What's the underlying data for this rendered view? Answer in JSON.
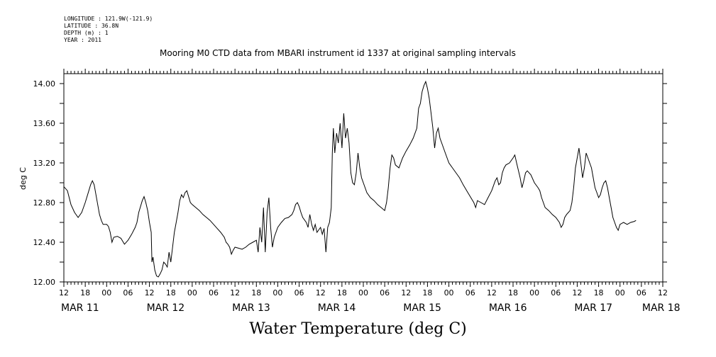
{
  "meta": {
    "longitude": "LONGITUDE : 121.9W(-121.9)",
    "latitude": "LATITUDE : 36.8N",
    "depth": "DEPTH (m) : 1",
    "year": "YEAR : 2011"
  },
  "title": "Mooring M0 CTD data from MBARI instrument id 1337 at original sampling intervals",
  "footer": "Water Temperature (deg C)",
  "chart_data": {
    "type": "line",
    "ylabel": "deg C",
    "ylim": [
      12.0,
      14.1
    ],
    "yticks": [
      "12.00",
      "12.40",
      "12.80",
      "13.20",
      "13.60",
      "14.00"
    ],
    "xlim_hours": [
      0,
      168
    ],
    "hour_tick_labels": [
      "12",
      "18",
      "00",
      "06",
      "12",
      "18",
      "00",
      "06",
      "12",
      "18",
      "00",
      "06",
      "12",
      "18",
      "00",
      "06",
      "12",
      "18",
      "00",
      "06",
      "12",
      "18",
      "00",
      "06",
      "12",
      "18",
      "00",
      "06",
      "12"
    ],
    "day_labels": [
      {
        "label": "MAR 11",
        "hour": 0
      },
      {
        "label": "MAR 12",
        "hour": 24
      },
      {
        "label": "MAR 13",
        "hour": 48
      },
      {
        "label": "MAR 14",
        "hour": 72
      },
      {
        "label": "MAR 15",
        "hour": 96
      },
      {
        "label": "MAR 16",
        "hour": 120
      },
      {
        "label": "MAR 17",
        "hour": 144
      },
      {
        "label": "MAR 18",
        "hour": 163
      }
    ],
    "series": [
      {
        "points": [
          [
            0,
            12.96
          ],
          [
            1,
            12.92
          ],
          [
            2,
            12.78
          ],
          [
            3,
            12.7
          ],
          [
            4,
            12.65
          ],
          [
            5,
            12.7
          ],
          [
            6,
            12.8
          ],
          [
            7,
            12.92
          ],
          [
            7.5,
            12.98
          ],
          [
            8,
            13.02
          ],
          [
            8.5,
            12.98
          ],
          [
            9,
            12.88
          ],
          [
            9.5,
            12.78
          ],
          [
            10,
            12.68
          ],
          [
            10.5,
            12.62
          ],
          [
            11,
            12.58
          ],
          [
            12,
            12.58
          ],
          [
            12.5,
            12.56
          ],
          [
            13,
            12.5
          ],
          [
            13.5,
            12.4
          ],
          [
            14,
            12.45
          ],
          [
            15,
            12.46
          ],
          [
            16,
            12.44
          ],
          [
            17,
            12.38
          ],
          [
            18,
            12.42
          ],
          [
            19,
            12.48
          ],
          [
            20,
            12.55
          ],
          [
            20.5,
            12.6
          ],
          [
            21,
            12.7
          ],
          [
            22,
            12.82
          ],
          [
            22.5,
            12.86
          ],
          [
            23,
            12.8
          ],
          [
            23.5,
            12.72
          ],
          [
            24,
            12.6
          ],
          [
            24.5,
            12.5
          ],
          [
            24.7,
            12.2
          ],
          [
            25,
            12.25
          ],
          [
            25.5,
            12.12
          ],
          [
            26,
            12.06
          ],
          [
            26.5,
            12.05
          ],
          [
            27,
            12.08
          ],
          [
            27.5,
            12.12
          ],
          [
            28,
            12.2
          ],
          [
            28.5,
            12.18
          ],
          [
            29,
            12.15
          ],
          [
            29.5,
            12.3
          ],
          [
            30,
            12.2
          ],
          [
            30.5,
            12.35
          ],
          [
            31,
            12.5
          ],
          [
            31.5,
            12.6
          ],
          [
            32,
            12.7
          ],
          [
            32.5,
            12.82
          ],
          [
            33,
            12.88
          ],
          [
            33.5,
            12.85
          ],
          [
            34,
            12.9
          ],
          [
            34.5,
            12.92
          ],
          [
            35,
            12.86
          ],
          [
            35.5,
            12.8
          ],
          [
            36,
            12.78
          ],
          [
            37,
            12.75
          ],
          [
            38,
            12.72
          ],
          [
            39,
            12.68
          ],
          [
            40,
            12.65
          ],
          [
            41,
            12.62
          ],
          [
            42,
            12.58
          ],
          [
            43,
            12.54
          ],
          [
            44,
            12.5
          ],
          [
            45,
            12.45
          ],
          [
            45.5,
            12.4
          ],
          [
            46,
            12.38
          ],
          [
            46.5,
            12.35
          ],
          [
            47,
            12.28
          ],
          [
            47.5,
            12.32
          ],
          [
            48,
            12.35
          ],
          [
            49,
            12.34
          ],
          [
            50,
            12.33
          ],
          [
            51,
            12.35
          ],
          [
            52,
            12.38
          ],
          [
            53,
            12.4
          ],
          [
            54,
            12.42
          ],
          [
            54.5,
            12.3
          ],
          [
            55,
            12.55
          ],
          [
            55.5,
            12.4
          ],
          [
            56,
            12.75
          ],
          [
            56.5,
            12.3
          ],
          [
            57,
            12.7
          ],
          [
            57.5,
            12.85
          ],
          [
            58,
            12.55
          ],
          [
            58.5,
            12.35
          ],
          [
            59,
            12.45
          ],
          [
            60,
            12.55
          ],
          [
            61,
            12.6
          ],
          [
            62,
            12.64
          ],
          [
            63,
            12.65
          ],
          [
            64,
            12.68
          ],
          [
            64.5,
            12.72
          ],
          [
            65,
            12.78
          ],
          [
            65.5,
            12.8
          ],
          [
            66,
            12.76
          ],
          [
            66.5,
            12.7
          ],
          [
            67,
            12.65
          ],
          [
            68,
            12.6
          ],
          [
            68.5,
            12.55
          ],
          [
            69,
            12.68
          ],
          [
            69.5,
            12.58
          ],
          [
            70,
            12.52
          ],
          [
            70.5,
            12.58
          ],
          [
            71,
            12.5
          ],
          [
            72,
            12.55
          ],
          [
            72.5,
            12.48
          ],
          [
            73,
            12.54
          ],
          [
            73.5,
            12.3
          ],
          [
            74,
            12.55
          ],
          [
            74.5,
            12.6
          ],
          [
            75,
            12.75
          ],
          [
            75.3,
            13.3
          ],
          [
            75.6,
            13.55
          ],
          [
            76,
            13.3
          ],
          [
            76.5,
            13.5
          ],
          [
            77,
            13.4
          ],
          [
            77.5,
            13.6
          ],
          [
            78,
            13.35
          ],
          [
            78.5,
            13.7
          ],
          [
            79,
            13.45
          ],
          [
            79.5,
            13.55
          ],
          [
            80,
            13.4
          ],
          [
            80.5,
            13.1
          ],
          [
            81,
            13.0
          ],
          [
            81.5,
            12.98
          ],
          [
            82,
            13.1
          ],
          [
            82.5,
            13.3
          ],
          [
            83,
            13.15
          ],
          [
            83.5,
            13.05
          ],
          [
            84,
            13.0
          ],
          [
            85,
            12.9
          ],
          [
            86,
            12.85
          ],
          [
            87,
            12.82
          ],
          [
            88,
            12.78
          ],
          [
            89,
            12.75
          ],
          [
            90,
            12.72
          ],
          [
            90.5,
            12.8
          ],
          [
            91,
            12.95
          ],
          [
            91.5,
            13.15
          ],
          [
            92,
            13.28
          ],
          [
            92.5,
            13.25
          ],
          [
            93,
            13.18
          ],
          [
            94,
            13.15
          ],
          [
            95,
            13.25
          ],
          [
            96,
            13.32
          ],
          [
            97,
            13.38
          ],
          [
            98,
            13.45
          ],
          [
            99,
            13.55
          ],
          [
            99.5,
            13.75
          ],
          [
            100,
            13.8
          ],
          [
            100.5,
            13.92
          ],
          [
            101,
            13.98
          ],
          [
            101.5,
            14.02
          ],
          [
            102,
            13.95
          ],
          [
            102.5,
            13.85
          ],
          [
            103,
            13.7
          ],
          [
            103.5,
            13.55
          ],
          [
            104,
            13.35
          ],
          [
            104.5,
            13.5
          ],
          [
            105,
            13.55
          ],
          [
            105.5,
            13.45
          ],
          [
            106,
            13.4
          ],
          [
            107,
            13.3
          ],
          [
            108,
            13.2
          ],
          [
            109,
            13.15
          ],
          [
            110,
            13.1
          ],
          [
            111,
            13.05
          ],
          [
            112,
            12.98
          ],
          [
            113,
            12.92
          ],
          [
            114,
            12.86
          ],
          [
            115,
            12.8
          ],
          [
            115.5,
            12.75
          ],
          [
            116,
            12.82
          ],
          [
            117,
            12.8
          ],
          [
            118,
            12.78
          ],
          [
            119,
            12.85
          ],
          [
            120,
            12.92
          ],
          [
            121,
            13.02
          ],
          [
            121.5,
            13.05
          ],
          [
            122,
            12.98
          ],
          [
            122.5,
            13.0
          ],
          [
            123,
            13.1
          ],
          [
            123.5,
            13.15
          ],
          [
            124,
            13.18
          ],
          [
            125,
            13.2
          ],
          [
            126,
            13.25
          ],
          [
            126.5,
            13.28
          ],
          [
            127,
            13.2
          ],
          [
            128,
            13.05
          ],
          [
            128.5,
            12.95
          ],
          [
            129,
            13.02
          ],
          [
            129.5,
            13.1
          ],
          [
            130,
            13.12
          ],
          [
            131,
            13.08
          ],
          [
            132,
            13.0
          ],
          [
            133,
            12.95
          ],
          [
            133.5,
            12.92
          ],
          [
            134,
            12.85
          ],
          [
            135,
            12.75
          ],
          [
            136,
            12.72
          ],
          [
            137,
            12.68
          ],
          [
            138,
            12.65
          ],
          [
            139,
            12.6
          ],
          [
            139.5,
            12.55
          ],
          [
            140,
            12.58
          ],
          [
            140.5,
            12.65
          ],
          [
            141,
            12.68
          ],
          [
            141.5,
            12.7
          ],
          [
            142,
            12.72
          ],
          [
            142.5,
            12.8
          ],
          [
            143,
            12.95
          ],
          [
            143.5,
            13.15
          ],
          [
            144,
            13.25
          ],
          [
            144.5,
            13.35
          ],
          [
            145,
            13.2
          ],
          [
            145.5,
            13.05
          ],
          [
            146,
            13.15
          ],
          [
            146.5,
            13.3
          ],
          [
            147,
            13.25
          ],
          [
            147.5,
            13.2
          ],
          [
            148,
            13.15
          ],
          [
            148.5,
            13.05
          ],
          [
            149,
            12.95
          ],
          [
            149.5,
            12.9
          ],
          [
            150,
            12.85
          ],
          [
            150.5,
            12.88
          ],
          [
            151,
            12.95
          ],
          [
            151.5,
            13.0
          ],
          [
            152,
            13.02
          ],
          [
            152.5,
            12.95
          ],
          [
            153,
            12.85
          ],
          [
            153.5,
            12.75
          ],
          [
            154,
            12.65
          ],
          [
            154.5,
            12.6
          ],
          [
            155,
            12.55
          ],
          [
            155.5,
            12.52
          ],
          [
            156,
            12.58
          ],
          [
            157,
            12.6
          ],
          [
            158,
            12.58
          ],
          [
            159,
            12.6
          ],
          [
            160,
            12.61
          ],
          [
            160.5,
            12.62
          ]
        ]
      }
    ]
  }
}
